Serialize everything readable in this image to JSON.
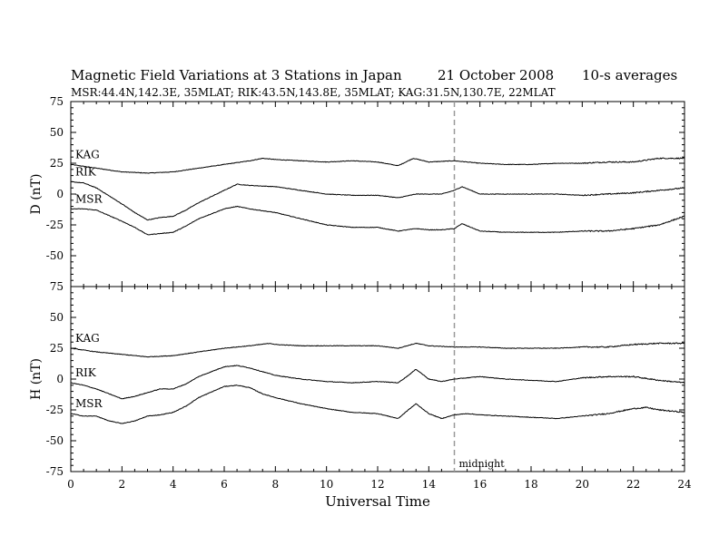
{
  "header": {
    "title": "Magnetic Field Variations at 3 Stations in Japan",
    "date": "21 October 2008",
    "averaging": "10-s averages",
    "stations": "MSR:44.4N,142.3E, 35MLAT;  RIK:43.5N,143.8E, 35MLAT;  KAG:31.5N,130.7E, 22MLAT"
  },
  "chart_data": [
    {
      "type": "line",
      "panel": "D",
      "ylabel": "D (nT)",
      "xlabel": "Universal Time",
      "xlim": [
        0,
        24
      ],
      "ylim": [
        -75,
        75
      ],
      "yticks": [
        75,
        50,
        25,
        0,
        -25,
        -50,
        -75
      ],
      "xticks": [
        0,
        2,
        4,
        6,
        8,
        10,
        12,
        14,
        16,
        18,
        20,
        22,
        24
      ],
      "series": [
        {
          "name": "KAG",
          "x": [
            0,
            1,
            2,
            3,
            3.5,
            4,
            5,
            6,
            7,
            7.5,
            8,
            9,
            10,
            11,
            12,
            12.8,
            13.4,
            14,
            15,
            16,
            17,
            18,
            19,
            20,
            21,
            22,
            23,
            24
          ],
          "y": [
            24,
            21,
            18,
            17,
            17.5,
            18,
            21,
            24,
            27,
            29,
            28,
            27,
            26,
            27,
            26,
            23,
            29,
            26,
            27,
            25,
            24,
            24,
            25,
            25,
            26,
            26,
            29,
            29
          ]
        },
        {
          "name": "RIK",
          "x": [
            0,
            0.5,
            1,
            2,
            2.5,
            3,
            3.5,
            4,
            4.5,
            5,
            6,
            6.5,
            7,
            8,
            9,
            10,
            11,
            12,
            12.8,
            13.5,
            14,
            14.5,
            15,
            15.3,
            16,
            17,
            18,
            19,
            20,
            21,
            22,
            23,
            24
          ],
          "y": [
            10,
            9,
            5,
            -8,
            -15,
            -21,
            -19,
            -18,
            -13,
            -7,
            3,
            8,
            7,
            6,
            3,
            0,
            -1,
            -1,
            -3,
            0,
            0,
            0,
            3,
            6,
            0,
            0,
            0,
            0,
            -1,
            0,
            1,
            3,
            5
          ]
        },
        {
          "name": "MSR",
          "x": [
            0,
            0.5,
            1,
            2,
            2.5,
            3,
            3.5,
            4,
            4.5,
            5,
            6,
            6.5,
            7,
            8,
            9,
            10,
            11,
            12,
            12.8,
            13.5,
            14,
            14.5,
            15,
            15.3,
            16,
            17,
            18,
            19,
            20,
            21,
            22,
            23,
            24
          ],
          "y": [
            -12,
            -12,
            -13,
            -22,
            -27,
            -33,
            -32,
            -31,
            -26,
            -20,
            -12,
            -10,
            -12,
            -15,
            -20,
            -25,
            -27,
            -27,
            -30,
            -28,
            -29,
            -29,
            -28,
            -24,
            -30,
            -31,
            -31,
            -31,
            -30,
            -30,
            -28,
            -25,
            -18
          ]
        }
      ]
    },
    {
      "type": "line",
      "panel": "H",
      "ylabel": "H (nT)",
      "xlabel": "Universal Time",
      "xlim": [
        0,
        24
      ],
      "ylim": [
        -75,
        75
      ],
      "yticks": [
        75,
        50,
        25,
        0,
        -25,
        -50,
        -75
      ],
      "xticks": [
        0,
        2,
        4,
        6,
        8,
        10,
        12,
        14,
        16,
        18,
        20,
        22,
        24
      ],
      "series": [
        {
          "name": "KAG",
          "x": [
            0,
            1,
            2,
            3,
            4,
            5,
            6,
            7,
            7.8,
            8,
            9,
            10,
            11,
            12,
            12.8,
            13.5,
            14,
            15,
            16,
            17,
            18,
            19,
            20,
            21,
            22,
            23,
            24
          ],
          "y": [
            25,
            22,
            20,
            18,
            19,
            22,
            25,
            27,
            29,
            28,
            27,
            27,
            27,
            27,
            25,
            29,
            27,
            26,
            26,
            25,
            25,
            25,
            26,
            26,
            28,
            29,
            29
          ]
        },
        {
          "name": "RIK",
          "x": [
            0,
            0.5,
            1,
            1.5,
            2,
            2.5,
            3,
            3.5,
            4,
            4.5,
            5,
            6,
            6.5,
            7,
            7.5,
            8,
            9,
            10,
            11,
            12,
            12.8,
            13.2,
            13.5,
            14,
            14.5,
            15,
            15.5,
            16,
            17,
            18,
            19,
            20,
            21,
            22,
            23,
            24
          ],
          "y": [
            -3,
            -5,
            -8,
            -12,
            -16,
            -14,
            -11,
            -8,
            -8,
            -4,
            2,
            10,
            11,
            9,
            6,
            3,
            0,
            -2,
            -3,
            -2,
            -3,
            3,
            8,
            0,
            -2,
            0,
            1,
            2,
            0,
            -1,
            -2,
            1,
            2,
            2,
            -1,
            -3
          ]
        },
        {
          "name": "MSR",
          "x": [
            0,
            0.5,
            1,
            1.5,
            2,
            2.5,
            3,
            3.5,
            4,
            4.5,
            5,
            6,
            6.5,
            7,
            7.5,
            8,
            9,
            10,
            11,
            12,
            12.8,
            13.2,
            13.5,
            14,
            14.5,
            15,
            15.5,
            16,
            17,
            18,
            19,
            20,
            21,
            22,
            22.5,
            23,
            24
          ],
          "y": [
            -28,
            -30,
            -30,
            -34,
            -36,
            -34,
            -30,
            -29,
            -27,
            -22,
            -15,
            -6,
            -5,
            -7,
            -12,
            -15,
            -20,
            -24,
            -27,
            -28,
            -32,
            -25,
            -20,
            -28,
            -32,
            -29,
            -28,
            -29,
            -30,
            -31,
            -32,
            -30,
            -28,
            -24,
            -23,
            -25,
            -27
          ]
        }
      ]
    }
  ],
  "annotation": {
    "text": "midnight",
    "x": 15
  }
}
